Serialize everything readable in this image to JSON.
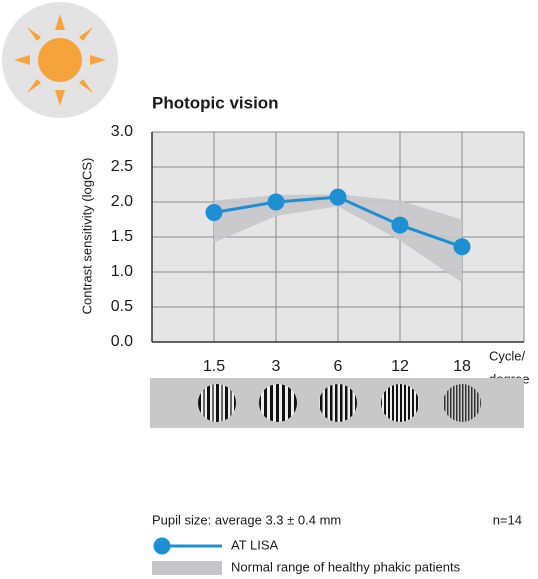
{
  "chart_data": {
    "type": "line",
    "title": "Photopic vision",
    "ylabel": "Contrast sensitivity (logCS)",
    "xlabel_lines": [
      "Cycle/",
      "degree"
    ],
    "categories": [
      "1.5",
      "3",
      "6",
      "12",
      "18"
    ],
    "series": [
      {
        "name": "AT LISA",
        "color": "#1f8fd3",
        "values": [
          1.85,
          2.0,
          2.07,
          1.67,
          1.36
        ]
      }
    ],
    "band": {
      "name": "Normal range of healthy phakic patients",
      "color": "#c6c6ca",
      "lower": [
        1.42,
        1.8,
        1.94,
        1.45,
        0.85
      ],
      "upper": [
        2.02,
        2.1,
        2.11,
        2.02,
        1.75
      ]
    },
    "ylim": [
      0,
      3
    ],
    "yticks": [
      {
        "value": 0,
        "label": "0.0"
      },
      {
        "value": 0.5,
        "label": "0.5"
      },
      {
        "value": 1,
        "label": "1.0"
      },
      {
        "value": 1.5,
        "label": "1.5"
      },
      {
        "value": 2,
        "label": "2.0"
      },
      {
        "value": 2.5,
        "label": "2.5"
      },
      {
        "value": 3,
        "label": "3.0"
      }
    ],
    "grid": true,
    "note": "Pupil size: average 3.3 ± 0.4 mm",
    "sample_size": "n=14"
  }
}
